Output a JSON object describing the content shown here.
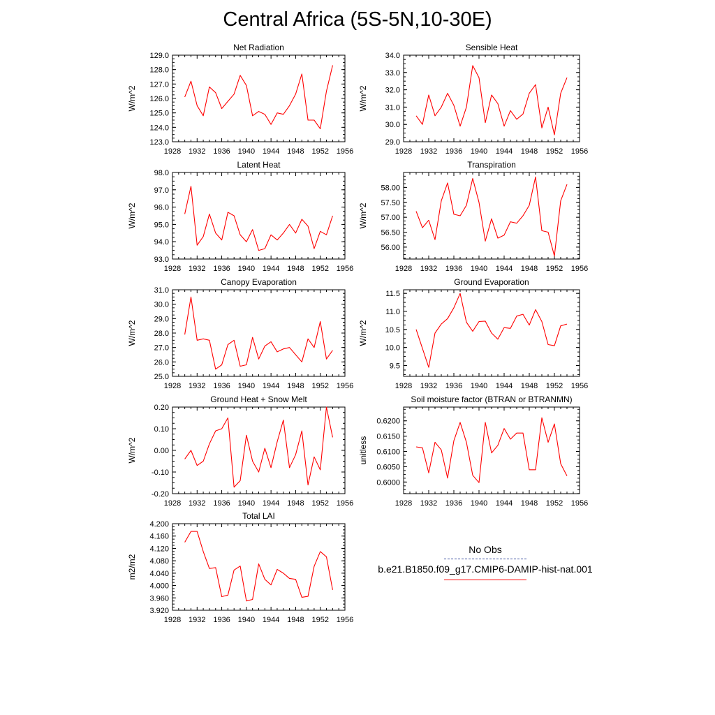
{
  "title": "Central Africa (5S-5N,10-30E)",
  "colors": {
    "series": "#ff0000",
    "obs": "#3b4fa0",
    "axis": "#000000"
  },
  "legend": {
    "obs_label": "No Obs",
    "model_label": "b.e21.B1850.f09_g17.CMIP6-DAMIP-hist-nat.001"
  },
  "chart_data": [
    {
      "type": "line",
      "title": "Net Radiation",
      "ylabel": "W/m^2",
      "xlim": [
        1928,
        1956
      ],
      "xticks": [
        1928,
        1932,
        1936,
        1940,
        1944,
        1948,
        1952,
        1956
      ],
      "ylim": [
        123.0,
        129.0
      ],
      "yticks": [
        123.0,
        124.0,
        125.0,
        126.0,
        127.0,
        128.0,
        129.0
      ],
      "ydecimals": 1,
      "x": [
        1930,
        1931,
        1932,
        1933,
        1934,
        1935,
        1936,
        1937,
        1938,
        1939,
        1940,
        1941,
        1942,
        1943,
        1944,
        1945,
        1946,
        1947,
        1948,
        1949,
        1950,
        1951,
        1952,
        1953,
        1954
      ],
      "series": [
        {
          "values": [
            126.1,
            127.2,
            125.5,
            124.8,
            126.8,
            126.4,
            125.3,
            125.8,
            126.3,
            127.6,
            126.9,
            124.8,
            125.1,
            124.9,
            124.2,
            125.0,
            124.9,
            125.5,
            126.3,
            127.7,
            124.5,
            124.5,
            123.9,
            126.5,
            128.3
          ]
        }
      ]
    },
    {
      "type": "line",
      "title": "Sensible Heat",
      "ylabel": "W/m^2",
      "xlim": [
        1928,
        1956
      ],
      "xticks": [
        1928,
        1932,
        1936,
        1940,
        1944,
        1948,
        1952,
        1956
      ],
      "ylim": [
        29.0,
        34.0
      ],
      "yticks": [
        29.0,
        30.0,
        31.0,
        32.0,
        33.0,
        34.0
      ],
      "ydecimals": 1,
      "x": [
        1930,
        1931,
        1932,
        1933,
        1934,
        1935,
        1936,
        1937,
        1938,
        1939,
        1940,
        1941,
        1942,
        1943,
        1944,
        1945,
        1946,
        1947,
        1948,
        1949,
        1950,
        1951,
        1952,
        1953,
        1954
      ],
      "series": [
        {
          "values": [
            30.5,
            30.0,
            31.7,
            30.5,
            31.0,
            31.8,
            31.1,
            29.9,
            31.0,
            33.4,
            32.7,
            30.1,
            31.7,
            31.2,
            29.9,
            30.8,
            30.3,
            30.6,
            31.8,
            32.3,
            29.8,
            31.0,
            29.4,
            31.8,
            32.7
          ]
        }
      ]
    },
    {
      "type": "line",
      "title": "Latent Heat",
      "ylabel": "W/m^2",
      "xlim": [
        1928,
        1956
      ],
      "xticks": [
        1928,
        1932,
        1936,
        1940,
        1944,
        1948,
        1952,
        1956
      ],
      "ylim": [
        93.0,
        98.0
      ],
      "yticks": [
        93.0,
        94.0,
        95.0,
        96.0,
        97.0,
        98.0
      ],
      "ydecimals": 1,
      "x": [
        1930,
        1931,
        1932,
        1933,
        1934,
        1935,
        1936,
        1937,
        1938,
        1939,
        1940,
        1941,
        1942,
        1943,
        1944,
        1945,
        1946,
        1947,
        1948,
        1949,
        1950,
        1951,
        1952,
        1953,
        1954
      ],
      "series": [
        {
          "values": [
            95.6,
            97.2,
            93.8,
            94.3,
            95.6,
            94.5,
            94.1,
            95.7,
            95.5,
            94.4,
            94.0,
            94.7,
            93.5,
            93.6,
            94.4,
            94.1,
            94.5,
            95.0,
            94.5,
            95.3,
            94.9,
            93.6,
            94.6,
            94.4,
            95.5
          ]
        }
      ]
    },
    {
      "type": "line",
      "title": "Transpiration",
      "ylabel": "W/m^2",
      "xlim": [
        1928,
        1956
      ],
      "xticks": [
        1928,
        1932,
        1936,
        1940,
        1944,
        1948,
        1952,
        1956
      ],
      "ylim": [
        55.6,
        58.5
      ],
      "yticks": [
        56.0,
        56.5,
        57.0,
        57.5,
        58.0
      ],
      "ydecimals": 2,
      "x": [
        1930,
        1931,
        1932,
        1933,
        1934,
        1935,
        1936,
        1937,
        1938,
        1939,
        1940,
        1941,
        1942,
        1943,
        1944,
        1945,
        1946,
        1947,
        1948,
        1949,
        1950,
        1951,
        1952,
        1953,
        1954
      ],
      "series": [
        {
          "values": [
            57.2,
            56.65,
            56.9,
            56.25,
            57.55,
            58.15,
            57.1,
            57.05,
            57.4,
            58.3,
            57.5,
            56.2,
            56.95,
            56.3,
            56.4,
            56.85,
            56.8,
            57.05,
            57.4,
            58.35,
            56.55,
            56.5,
            55.7,
            57.55,
            58.1
          ]
        }
      ]
    },
    {
      "type": "line",
      "title": "Canopy Evaporation",
      "ylabel": "W/m^2",
      "xlim": [
        1928,
        1956
      ],
      "xticks": [
        1928,
        1932,
        1936,
        1940,
        1944,
        1948,
        1952,
        1956
      ],
      "ylim": [
        25.0,
        31.0
      ],
      "yticks": [
        25.0,
        26.0,
        27.0,
        28.0,
        29.0,
        30.0,
        31.0
      ],
      "ydecimals": 1,
      "x": [
        1930,
        1931,
        1932,
        1933,
        1934,
        1935,
        1936,
        1937,
        1938,
        1939,
        1940,
        1941,
        1942,
        1943,
        1944,
        1945,
        1946,
        1947,
        1948,
        1949,
        1950,
        1951,
        1952,
        1953,
        1954
      ],
      "series": [
        {
          "values": [
            27.9,
            30.5,
            27.5,
            27.6,
            27.5,
            25.5,
            25.8,
            27.2,
            27.5,
            25.7,
            25.8,
            27.7,
            26.2,
            27.1,
            27.4,
            26.7,
            26.9,
            27.0,
            26.5,
            26.0,
            27.6,
            27.0,
            28.8,
            26.2,
            26.8
          ]
        }
      ]
    },
    {
      "type": "line",
      "title": "Ground Evaporation",
      "ylabel": "W/m^2",
      "xlim": [
        1928,
        1956
      ],
      "xticks": [
        1928,
        1932,
        1936,
        1940,
        1944,
        1948,
        1952,
        1956
      ],
      "ylim": [
        9.2,
        11.6
      ],
      "yticks": [
        9.5,
        10.0,
        10.5,
        11.0,
        11.5
      ],
      "ydecimals": 1,
      "x": [
        1930,
        1932,
        1933,
        1934,
        1935,
        1936,
        1937,
        1938,
        1939,
        1940,
        1941,
        1942,
        1943,
        1944,
        1945,
        1946,
        1947,
        1948,
        1949,
        1950,
        1951,
        1952,
        1953,
        1954
      ],
      "series": [
        {
          "values": [
            10.5,
            9.45,
            10.4,
            10.65,
            10.8,
            11.1,
            11.5,
            10.7,
            10.45,
            10.72,
            10.73,
            10.4,
            10.23,
            10.55,
            10.53,
            10.87,
            10.92,
            10.62,
            11.05,
            10.72,
            10.08,
            10.05,
            10.6,
            10.65
          ]
        }
      ]
    },
    {
      "type": "line",
      "title": "Ground Heat + Snow Melt",
      "ylabel": "W/m^2",
      "xlim": [
        1928,
        1956
      ],
      "xticks": [
        1928,
        1932,
        1936,
        1940,
        1944,
        1948,
        1952,
        1956
      ],
      "ylim": [
        -0.2,
        0.2
      ],
      "yticks": [
        -0.2,
        -0.1,
        0.0,
        0.1,
        0.2
      ],
      "ydecimals": 2,
      "x": [
        1930,
        1931,
        1932,
        1933,
        1934,
        1935,
        1936,
        1937,
        1938,
        1939,
        1940,
        1941,
        1942,
        1943,
        1944,
        1945,
        1946,
        1947,
        1948,
        1949,
        1950,
        1951,
        1952,
        1953,
        1954
      ],
      "series": [
        {
          "values": [
            -0.04,
            0.0,
            -0.07,
            -0.05,
            0.03,
            0.09,
            0.1,
            0.15,
            -0.17,
            -0.14,
            0.07,
            -0.05,
            -0.1,
            0.01,
            -0.08,
            0.04,
            0.14,
            -0.08,
            -0.02,
            0.09,
            -0.16,
            -0.03,
            -0.09,
            0.2,
            0.06
          ]
        }
      ]
    },
    {
      "type": "line",
      "title": "Soil moisture factor (BTRAN or BTRANMN)",
      "ylabel": "unitless",
      "xlim": [
        1928,
        1956
      ],
      "xticks": [
        1928,
        1932,
        1936,
        1940,
        1944,
        1948,
        1952,
        1956
      ],
      "ylim": [
        0.5962,
        0.6245
      ],
      "yticks": [
        0.6,
        0.605,
        0.61,
        0.615,
        0.62
      ],
      "ydecimals": 4,
      "x": [
        1930,
        1931,
        1932,
        1933,
        1934,
        1935,
        1936,
        1937,
        1938,
        1939,
        1940,
        1941,
        1942,
        1943,
        1944,
        1945,
        1946,
        1947,
        1948,
        1949,
        1950,
        1951,
        1952,
        1953,
        1954
      ],
      "series": [
        {
          "values": [
            0.6115,
            0.6112,
            0.603,
            0.613,
            0.6105,
            0.6013,
            0.6135,
            0.6195,
            0.613,
            0.6022,
            0.5998,
            0.6195,
            0.6095,
            0.612,
            0.6175,
            0.614,
            0.616,
            0.616,
            0.604,
            0.604,
            0.621,
            0.613,
            0.619,
            0.606,
            0.602
          ]
        }
      ]
    },
    {
      "type": "line",
      "title": "Total LAI",
      "ylabel": "m2/m2",
      "xlim": [
        1928,
        1956
      ],
      "xticks": [
        1928,
        1932,
        1936,
        1940,
        1944,
        1948,
        1952,
        1956
      ],
      "ylim": [
        3.92,
        4.2
      ],
      "yticks": [
        3.92,
        3.96,
        4.0,
        4.04,
        4.08,
        4.12,
        4.16,
        4.2
      ],
      "ydecimals": 3,
      "x": [
        1930,
        1931,
        1932,
        1933,
        1934,
        1935,
        1936,
        1937,
        1938,
        1939,
        1940,
        1941,
        1942,
        1943,
        1944,
        1945,
        1946,
        1947,
        1948,
        1949,
        1950,
        1951,
        1952,
        1953,
        1954
      ],
      "series": [
        {
          "values": [
            4.14,
            4.175,
            4.175,
            4.11,
            4.055,
            4.058,
            3.964,
            3.969,
            4.05,
            4.063,
            3.95,
            3.955,
            4.07,
            4.02,
            4.002,
            4.052,
            4.04,
            4.023,
            4.02,
            3.962,
            3.965,
            4.062,
            4.11,
            4.093,
            3.986
          ]
        }
      ]
    }
  ]
}
